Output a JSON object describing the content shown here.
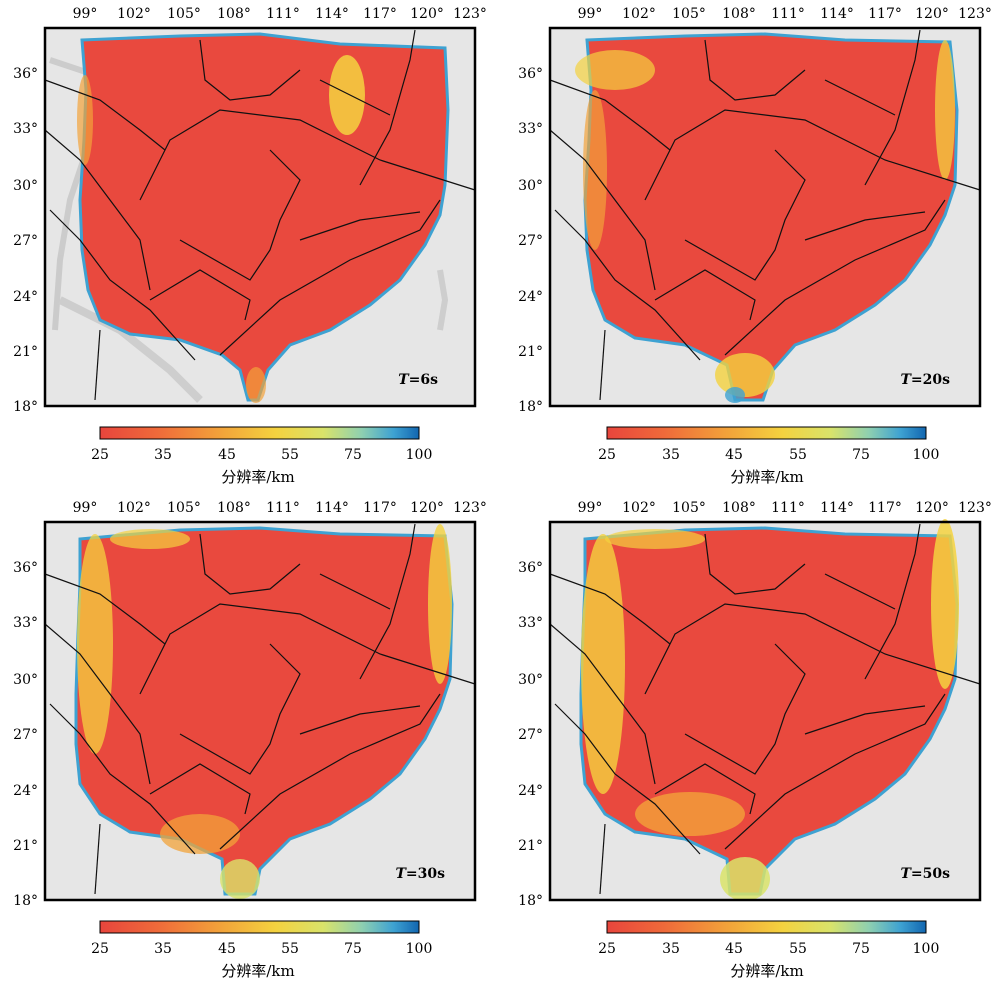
{
  "figure": {
    "x_ticks": [
      "99°",
      "102°",
      "105°",
      "108°",
      "111°",
      "114°",
      "117°",
      "120°",
      "123°"
    ],
    "y_ticks": [
      "36°",
      "33°",
      "30°",
      "27°",
      "24°",
      "21°",
      "18°"
    ],
    "colorbar": {
      "ticks": [
        "25",
        "35",
        "45",
        "55",
        "75",
        "100"
      ],
      "label": "分辨率/km",
      "colors": [
        "#e8453c",
        "#ef6a3a",
        "#f2a33a",
        "#f4d23f",
        "#d9e36a",
        "#8fd0b0",
        "#3ea2d2",
        "#1266b0"
      ]
    },
    "panels": [
      {
        "id": "t6",
        "period_prefix": "T",
        "period_value": "=6s"
      },
      {
        "id": "t20",
        "period_prefix": "T",
        "period_value": "=20s"
      },
      {
        "id": "t30",
        "period_prefix": "T",
        "period_value": "=30s"
      },
      {
        "id": "t50",
        "period_prefix": "T",
        "period_value": "=50s"
      }
    ]
  }
}
